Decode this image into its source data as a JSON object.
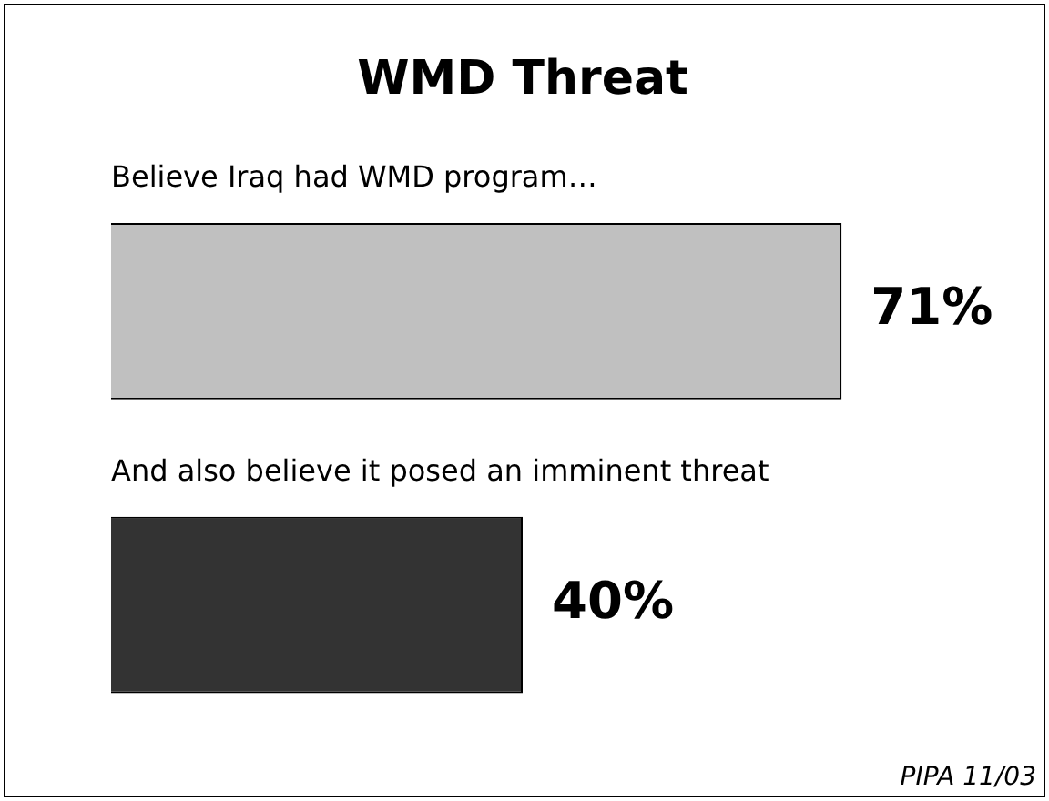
{
  "chart_data": {
    "type": "bar",
    "orientation": "horizontal",
    "title": "WMD Threat",
    "categories": [
      "Believe Iraq had WMD program…",
      "And also believe it posed an imminent threat"
    ],
    "values": [
      71,
      40
    ],
    "colors": [
      "#c0c0c0",
      "#333333"
    ],
    "value_labels": [
      "71%",
      "40%"
    ],
    "annotations": [
      "PIPA 11/03"
    ],
    "legend": false
  }
}
